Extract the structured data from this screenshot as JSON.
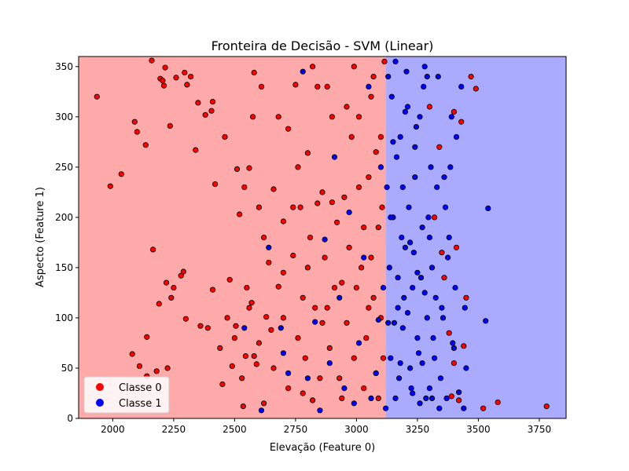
{
  "chart_data": {
    "type": "scatter",
    "title": "Fronteira de Decisão - SVM (Linear)",
    "xlabel": "Elevação (Feature 0)",
    "ylabel": "Aspecto (Feature 1)",
    "xlim": [
      1860,
      3860
    ],
    "ylim": [
      0,
      360
    ],
    "xticks": [
      2000,
      2250,
      2500,
      2750,
      3000,
      3250,
      3500,
      3750
    ],
    "yticks": [
      0,
      50,
      100,
      150,
      200,
      250,
      300,
      350
    ],
    "grid": false,
    "legend_position": "lower-left",
    "decision_boundary_x": 3120,
    "regions": [
      {
        "label": "Classe 0",
        "color": "#ffaaaa"
      },
      {
        "label": "Classe 1",
        "color": "#aaaaff"
      }
    ],
    "series": [
      {
        "name": "Classe 0",
        "color": "#ff0000",
        "points": [
          [
            1935,
            320
          ],
          [
            1990,
            231
          ],
          [
            2035,
            243
          ],
          [
            2080,
            64
          ],
          [
            2090,
            295
          ],
          [
            2100,
            285
          ],
          [
            2110,
            52
          ],
          [
            2135,
            272
          ],
          [
            2140,
            81
          ],
          [
            2140,
            42
          ],
          [
            2160,
            356
          ],
          [
            2165,
            168
          ],
          [
            2180,
            47
          ],
          [
            2190,
            114
          ],
          [
            2195,
            338
          ],
          [
            2205,
            336
          ],
          [
            2210,
            331
          ],
          [
            2215,
            349
          ],
          [
            2220,
            135
          ],
          [
            2225,
            50
          ],
          [
            2235,
            291
          ],
          [
            2240,
            120
          ],
          [
            2250,
            130
          ],
          [
            2260,
            339
          ],
          [
            2280,
            142
          ],
          [
            2290,
            146
          ],
          [
            2295,
            344
          ],
          [
            2300,
            99
          ],
          [
            2305,
            332
          ],
          [
            2320,
            340
          ],
          [
            2340,
            267
          ],
          [
            2350,
            314
          ],
          [
            2360,
            92
          ],
          [
            2380,
            302
          ],
          [
            2390,
            90
          ],
          [
            2405,
            306
          ],
          [
            2410,
            128
          ],
          [
            2410,
            315
          ],
          [
            2420,
            233
          ],
          [
            2440,
            70
          ],
          [
            2450,
            34
          ],
          [
            2460,
            280
          ],
          [
            2470,
            100
          ],
          [
            2480,
            138
          ],
          [
            2490,
            52
          ],
          [
            2500,
            80
          ],
          [
            2505,
            92
          ],
          [
            2510,
            248
          ],
          [
            2520,
            203
          ],
          [
            2530,
            40
          ],
          [
            2535,
            12
          ],
          [
            2540,
            230
          ],
          [
            2545,
            62
          ],
          [
            2550,
            130
          ],
          [
            2560,
            249
          ],
          [
            2570,
            115
          ],
          [
            2575,
            300
          ],
          [
            2580,
            344
          ],
          [
            2590,
            54
          ],
          [
            2600,
            210
          ],
          [
            2610,
            330
          ],
          [
            2620,
            15
          ],
          [
            2630,
            101
          ],
          [
            2650,
            88
          ],
          [
            2660,
            228
          ],
          [
            2680,
            131
          ],
          [
            2700,
            196
          ],
          [
            2720,
            288
          ],
          [
            2740,
            162
          ],
          [
            2750,
            332
          ],
          [
            2770,
            210
          ],
          [
            2780,
            120
          ],
          [
            2790,
            60
          ],
          [
            2800,
            264
          ],
          [
            2820,
            350
          ],
          [
            2840,
            214
          ],
          [
            2860,
            95
          ],
          [
            2880,
            330
          ],
          [
            2900,
            300
          ],
          [
            2910,
            130
          ],
          [
            2930,
            40
          ],
          [
            2950,
            220
          ],
          [
            2970,
            170
          ],
          [
            2990,
            350
          ],
          [
            3010,
            300
          ],
          [
            3020,
            150
          ],
          [
            3040,
            80
          ],
          [
            3050,
            240
          ],
          [
            3060,
            320
          ],
          [
            3070,
            120
          ],
          [
            3080,
            45
          ],
          [
            3090,
            190
          ],
          [
            3100,
            280
          ],
          [
            3110,
            60
          ],
          [
            3115,
            355
          ],
          [
            2620,
            180
          ],
          [
            2660,
            50
          ],
          [
            2700,
            145
          ],
          [
            2720,
            30
          ],
          [
            2760,
            250
          ],
          [
            2780,
            25
          ],
          [
            2810,
            180
          ],
          [
            2830,
            110
          ],
          [
            2850,
            40
          ],
          [
            2870,
            160
          ],
          [
            2890,
            70
          ],
          [
            2900,
            215
          ],
          [
            2940,
            20
          ],
          [
            2960,
            95
          ],
          [
            2980,
            280
          ],
          [
            3000,
            130
          ],
          [
            3030,
            30
          ],
          [
            3060,
            160
          ],
          [
            3080,
            265
          ],
          [
            3100,
            100
          ],
          [
            2560,
            110
          ],
          [
            2580,
            62
          ],
          [
            2600,
            75
          ],
          [
            2640,
            155
          ],
          [
            2680,
            300
          ],
          [
            2700,
            100
          ],
          [
            2740,
            210
          ],
          [
            2760,
            80
          ],
          [
            2800,
            150
          ],
          [
            2820,
            18
          ],
          [
            2840,
            330
          ],
          [
            2860,
            225
          ],
          [
            2880,
            110
          ],
          [
            2920,
            195
          ],
          [
            2940,
            135
          ],
          [
            2960,
            310
          ],
          [
            2990,
            60
          ],
          [
            3010,
            230
          ],
          [
            3030,
            190
          ],
          [
            3050,
            110
          ],
          [
            3070,
            340
          ],
          [
            3090,
            20
          ],
          [
            3105,
            210
          ],
          [
            3340,
            270
          ],
          [
            3350,
            165
          ],
          [
            3380,
            85
          ],
          [
            3390,
            22
          ],
          [
            3400,
            305
          ],
          [
            3410,
            170
          ],
          [
            3420,
            18
          ],
          [
            3430,
            295
          ],
          [
            3440,
            72
          ],
          [
            3450,
            120
          ],
          [
            3470,
            340
          ],
          [
            3490,
            328
          ],
          [
            3520,
            10
          ],
          [
            3580,
            16
          ],
          [
            3780,
            12
          ],
          [
            3300,
            310
          ],
          [
            3320,
            200
          ],
          [
            3360,
            140
          ],
          [
            3400,
            55
          ]
        ]
      },
      {
        "name": "Classe 1",
        "color": "#0000ff",
        "points": [
          [
            2540,
            90
          ],
          [
            2610,
            8
          ],
          [
            2640,
            170
          ],
          [
            2690,
            90
          ],
          [
            2700,
            65
          ],
          [
            2720,
            45
          ],
          [
            2780,
            345
          ],
          [
            2800,
            40
          ],
          [
            2830,
            96
          ],
          [
            2850,
            8
          ],
          [
            2870,
            178
          ],
          [
            2890,
            55
          ],
          [
            2910,
            260
          ],
          [
            2930,
            120
          ],
          [
            2950,
            30
          ],
          [
            2970,
            205
          ],
          [
            2990,
            15
          ],
          [
            3010,
            75
          ],
          [
            3030,
            160
          ],
          [
            3050,
            330
          ],
          [
            3060,
            20
          ],
          [
            3080,
            45
          ],
          [
            3090,
            98
          ],
          [
            3100,
            250
          ],
          [
            3110,
            130
          ],
          [
            3130,
            340
          ],
          [
            3140,
            60
          ],
          [
            3150,
            200
          ],
          [
            3160,
            20
          ],
          [
            3170,
            110
          ],
          [
            3180,
            280
          ],
          [
            3190,
            90
          ],
          [
            3200,
            170
          ],
          [
            3210,
            310
          ],
          [
            3220,
            50
          ],
          [
            3230,
            130
          ],
          [
            3240,
            240
          ],
          [
            3250,
            80
          ],
          [
            3260,
            15
          ],
          [
            3270,
            190
          ],
          [
            3280,
            350
          ],
          [
            3290,
            100
          ],
          [
            3300,
            30
          ],
          [
            3310,
            150
          ],
          [
            3320,
            60
          ],
          [
            3330,
            230
          ],
          [
            3340,
            10
          ],
          [
            3350,
            110
          ],
          [
            3360,
            240
          ],
          [
            3370,
            20
          ],
          [
            3380,
            180
          ],
          [
            3390,
            300
          ],
          [
            3400,
            70
          ],
          [
            3410,
            280
          ],
          [
            3420,
            26
          ],
          [
            3430,
            330
          ],
          [
            3440,
            10
          ],
          [
            3445,
            110
          ],
          [
            3450,
            50
          ],
          [
            3530,
            97
          ],
          [
            3540,
            209
          ],
          [
            3125,
            230
          ],
          [
            3135,
            150
          ],
          [
            3145,
            320
          ],
          [
            3155,
            95
          ],
          [
            3165,
            260
          ],
          [
            3175,
            40
          ],
          [
            3185,
            180
          ],
          [
            3195,
            120
          ],
          [
            3205,
            345
          ],
          [
            3215,
            210
          ],
          [
            3225,
            30
          ],
          [
            3235,
            165
          ],
          [
            3245,
            290
          ],
          [
            3255,
            65
          ],
          [
            3265,
            140
          ],
          [
            3275,
            330
          ],
          [
            3285,
            20
          ],
          [
            3295,
            200
          ],
          [
            3305,
            250
          ],
          [
            3315,
            80
          ],
          [
            3325,
            120
          ],
          [
            3335,
            340
          ],
          [
            3345,
            40
          ],
          [
            3355,
            100
          ],
          [
            3365,
            210
          ],
          [
            3375,
            160
          ],
          [
            3385,
            250
          ],
          [
            3395,
            75
          ],
          [
            3405,
            130
          ],
          [
            3120,
            10
          ],
          [
            3130,
            95
          ],
          [
            3140,
            200
          ],
          [
            3150,
            275
          ],
          [
            3160,
            355
          ],
          [
            3170,
            140
          ],
          [
            3180,
            55
          ],
          [
            3190,
            230
          ],
          [
            3200,
            305
          ],
          [
            3210,
            105
          ],
          [
            3220,
            175
          ],
          [
            3230,
            25
          ],
          [
            3240,
            270
          ],
          [
            3250,
            145
          ],
          [
            3260,
            300
          ],
          [
            3270,
            55
          ],
          [
            3280,
            125
          ],
          [
            3290,
            340
          ],
          [
            3300,
            180
          ],
          [
            3310,
            20
          ]
        ]
      }
    ]
  }
}
